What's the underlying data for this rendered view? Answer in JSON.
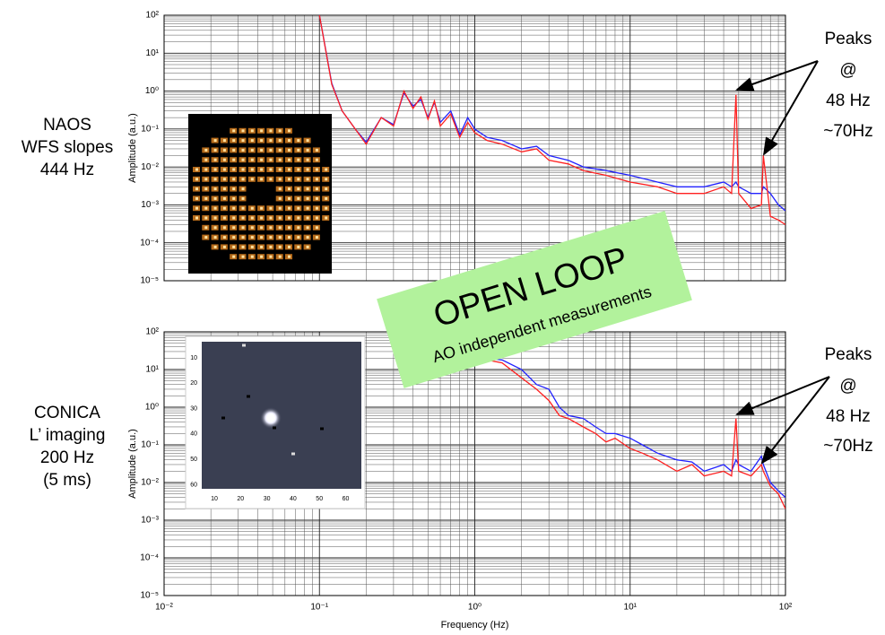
{
  "chart_data": [
    {
      "type": "line",
      "side_label": [
        "NAOS",
        "WFS slopes",
        "444 Hz"
      ],
      "y_label": "Amplitude (a.u.)",
      "annotations": [
        "Peaks",
        "@",
        "48 Hz",
        "~70Hz"
      ],
      "xscale": "log",
      "yscale": "log",
      "grid": true,
      "xtick_labels": false,
      "xlim": [
        0.01,
        100
      ],
      "xticks": [
        0.01,
        0.1,
        1,
        10,
        100
      ],
      "ylim": [
        1e-05,
        100
      ],
      "yticks": [
        {
          "value": 1e-05,
          "label": "10⁻⁵"
        },
        {
          "value": 0.0001,
          "label": "10⁻⁴"
        },
        {
          "value": 0.001,
          "label": "10⁻³"
        },
        {
          "value": 0.01,
          "label": "10⁻²"
        },
        {
          "value": 0.1,
          "label": "10⁻¹"
        },
        {
          "value": 1,
          "label": "10⁰"
        },
        {
          "value": 10,
          "label": "10¹"
        },
        {
          "value": 100,
          "label": "10²"
        }
      ],
      "x": [
        0.1,
        0.12,
        0.14,
        0.17,
        0.2,
        0.25,
        0.3,
        0.35,
        0.4,
        0.45,
        0.5,
        0.55,
        0.6,
        0.7,
        0.8,
        0.9,
        1,
        1.2,
        1.5,
        2,
        2.5,
        3,
        4,
        5,
        7,
        10,
        15,
        20,
        30,
        40,
        45,
        48,
        50,
        60,
        70,
        72,
        80,
        90,
        100
      ],
      "series": [
        {
          "color": "#2222ff",
          "values": [
            100,
            1.6,
            0.3,
            0.1,
            0.045,
            0.2,
            0.13,
            0.9,
            0.4,
            0.6,
            0.2,
            0.5,
            0.15,
            0.3,
            0.07,
            0.2,
            0.1,
            0.06,
            0.05,
            0.03,
            0.035,
            0.02,
            0.015,
            0.01,
            0.008,
            0.006,
            0.004,
            0.003,
            0.003,
            0.004,
            0.003,
            0.004,
            0.003,
            0.002,
            0.002,
            0.003,
            0.002,
            0.001,
            0.0007
          ]
        },
        {
          "color": "#ff2020",
          "values": [
            100,
            1.5,
            0.3,
            0.1,
            0.04,
            0.2,
            0.12,
            1.0,
            0.35,
            0.7,
            0.18,
            0.55,
            0.12,
            0.25,
            0.06,
            0.15,
            0.08,
            0.05,
            0.04,
            0.025,
            0.03,
            0.015,
            0.012,
            0.008,
            0.006,
            0.004,
            0.003,
            0.002,
            0.002,
            0.003,
            0.002,
            0.8,
            0.002,
            0.0008,
            0.001,
            0.02,
            0.0005,
            0.0004,
            0.0003
          ]
        }
      ]
    },
    {
      "type": "line",
      "side_label": [
        "CONICA",
        "L’ imaging",
        "200 Hz",
        "(5 ms)"
      ],
      "y_label": "Amplitude (a.u.)",
      "x_label": "Frequency (Hz)",
      "annotations": [
        "Peaks",
        "@",
        "48 Hz",
        "~70Hz"
      ],
      "xscale": "log",
      "yscale": "log",
      "grid": true,
      "xtick_labels": true,
      "xlim": [
        0.01,
        100
      ],
      "xticks": [
        {
          "value": 0.01,
          "label": "10⁻²"
        },
        {
          "value": 0.1,
          "label": "10⁻¹"
        },
        {
          "value": 1,
          "label": "10⁰"
        },
        {
          "value": 10,
          "label": "10¹"
        },
        {
          "value": 100,
          "label": "10²"
        }
      ],
      "ylim": [
        1e-05,
        100
      ],
      "yticks": [
        {
          "value": 1e-05,
          "label": "10⁻⁵"
        },
        {
          "value": 0.0001,
          "label": "10⁻⁴"
        },
        {
          "value": 0.001,
          "label": "10⁻³"
        },
        {
          "value": 0.01,
          "label": "10⁻²"
        },
        {
          "value": 0.1,
          "label": "10⁻¹"
        },
        {
          "value": 1,
          "label": "10⁰"
        },
        {
          "value": 10,
          "label": "10¹"
        },
        {
          "value": 100,
          "label": "10²"
        }
      ],
      "x": [
        0.9,
        1,
        1.2,
        1.5,
        2,
        2.5,
        3,
        3.5,
        4,
        5,
        6,
        7,
        8,
        10,
        12,
        15,
        20,
        25,
        30,
        40,
        45,
        48,
        50,
        60,
        70,
        72,
        80,
        90,
        100
      ],
      "series": [
        {
          "color": "#2222ff",
          "values": [
            25,
            22,
            20,
            18,
            10,
            4,
            3,
            1,
            0.6,
            0.5,
            0.3,
            0.2,
            0.2,
            0.15,
            0.1,
            0.06,
            0.04,
            0.035,
            0.02,
            0.03,
            0.02,
            0.04,
            0.03,
            0.02,
            0.05,
            0.03,
            0.01,
            0.006,
            0.004
          ]
        },
        {
          "color": "#ff2020",
          "values": [
            25,
            20,
            18,
            15,
            6,
            3,
            1.5,
            0.6,
            0.5,
            0.3,
            0.2,
            0.12,
            0.15,
            0.08,
            0.06,
            0.04,
            0.02,
            0.03,
            0.015,
            0.02,
            0.015,
            0.5,
            0.02,
            0.015,
            0.03,
            0.02,
            0.008,
            0.005,
            0.002
          ]
        }
      ]
    }
  ],
  "callout": {
    "title": "OPEN LOOP",
    "subtitle": "AO independent measurements"
  },
  "inset": {
    "xticks": [
      10,
      20,
      30,
      40,
      50,
      60
    ],
    "yticks": [
      10,
      20,
      30,
      40,
      50,
      60
    ]
  }
}
